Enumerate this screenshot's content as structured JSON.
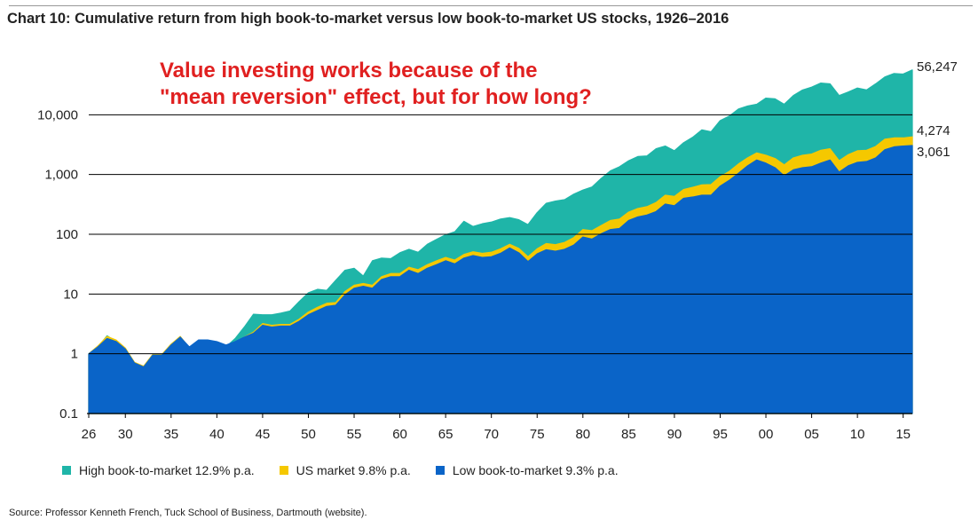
{
  "title": "Chart 10: Cumulative return from high book-to-market versus low book-to-market US stocks, 1926–2016",
  "annotation": [
    "Value investing works because of the",
    "\"mean reversion\" effect, but for how long?"
  ],
  "source": "Source: Professor Kenneth French, Tuck School of Business, Dartmouth (website).",
  "colors": {
    "high": "#1fb5a8",
    "market": "#f5c800",
    "low": "#0a64c8",
    "annotation": "#e02020"
  },
  "chart_data": {
    "type": "area",
    "yscale": "log",
    "ylim": [
      0.1,
      100000
    ],
    "xlim": [
      1926,
      2016
    ],
    "yticks": [
      {
        "value": 0.1,
        "label": "0.1"
      },
      {
        "value": 1,
        "label": "1"
      },
      {
        "value": 10,
        "label": "10"
      },
      {
        "value": 100,
        "label": "100"
      },
      {
        "value": 1000,
        "label": "1,000"
      },
      {
        "value": 10000,
        "label": "10,000"
      }
    ],
    "xticks": [
      {
        "value": 1926,
        "label": "26"
      },
      {
        "value": 1930,
        "label": "30"
      },
      {
        "value": 1935,
        "label": "35"
      },
      {
        "value": 1940,
        "label": "40"
      },
      {
        "value": 1945,
        "label": "45"
      },
      {
        "value": 1950,
        "label": "50"
      },
      {
        "value": 1955,
        "label": "55"
      },
      {
        "value": 1960,
        "label": "60"
      },
      {
        "value": 1965,
        "label": "65"
      },
      {
        "value": 1970,
        "label": "70"
      },
      {
        "value": 1975,
        "label": "75"
      },
      {
        "value": 1980,
        "label": "80"
      },
      {
        "value": 1985,
        "label": "85"
      },
      {
        "value": 1990,
        "label": "90"
      },
      {
        "value": 1995,
        "label": "95"
      },
      {
        "value": 2000,
        "label": "00"
      },
      {
        "value": 2005,
        "label": "05"
      },
      {
        "value": 2010,
        "label": "10"
      },
      {
        "value": 2015,
        "label": "15"
      }
    ],
    "x": [
      1926,
      1927,
      1928,
      1929,
      1930,
      1931,
      1932,
      1933,
      1934,
      1935,
      1936,
      1937,
      1938,
      1939,
      1940,
      1941,
      1942,
      1943,
      1944,
      1945,
      1946,
      1947,
      1948,
      1949,
      1950,
      1951,
      1952,
      1953,
      1954,
      1955,
      1956,
      1957,
      1958,
      1959,
      1960,
      1961,
      1962,
      1963,
      1964,
      1965,
      1966,
      1967,
      1968,
      1969,
      1970,
      1971,
      1972,
      1973,
      1974,
      1975,
      1976,
      1977,
      1978,
      1979,
      1980,
      1981,
      1982,
      1983,
      1984,
      1985,
      1986,
      1987,
      1988,
      1989,
      1990,
      1991,
      1992,
      1993,
      1994,
      1995,
      1996,
      1997,
      1998,
      1999,
      2000,
      2001,
      2002,
      2003,
      2004,
      2005,
      2006,
      2007,
      2008,
      2009,
      2010,
      2011,
      2012,
      2013,
      2014,
      2015,
      2016
    ],
    "series": [
      {
        "name": "High book-to-market",
        "legend_label": "High book-to-market  12.9% p.a.",
        "color": "#1fb5a8",
        "end_label": "56,247",
        "values": [
          1,
          1.3,
          2,
          1.6,
          1.1,
          0.42,
          0.42,
          0.9,
          0.85,
          1.3,
          1.6,
          1.15,
          1.3,
          1.2,
          1.1,
          1.3,
          1.8,
          2.8,
          4.6,
          4.5,
          4.5,
          4.8,
          5.2,
          7.5,
          10.5,
          12,
          11.5,
          17,
          25,
          27,
          20,
          36,
          40,
          39,
          49,
          56,
          50,
          68,
          82,
          98,
          110,
          165,
          135,
          150,
          160,
          180,
          190,
          175,
          145,
          230,
          330,
          360,
          380,
          470,
          550,
          620,
          860,
          1150,
          1350,
          1700,
          2000,
          2050,
          2700,
          3000,
          2500,
          3400,
          4200,
          5600,
          5200,
          8000,
          9500,
          12500,
          14000,
          15000,
          19000,
          18500,
          15000,
          21000,
          26000,
          29000,
          34000,
          33000,
          21000,
          24000,
          28000,
          26000,
          33000,
          43000,
          49000,
          48000,
          56247
        ]
      },
      {
        "name": "US market",
        "legend_label": "US market  9.8% p.a.",
        "color": "#f5c800",
        "end_label": "4,274",
        "values": [
          1,
          1.35,
          1.95,
          1.7,
          1.25,
          0.72,
          0.62,
          0.98,
          0.98,
          1.45,
          1.95,
          1.25,
          1.6,
          1.6,
          1.45,
          1.3,
          1.5,
          1.9,
          2.3,
          3.2,
          3.0,
          3.1,
          3.1,
          3.8,
          5.0,
          6.0,
          7.0,
          7.2,
          11,
          14,
          15,
          14,
          19.5,
          22,
          22,
          28,
          25.5,
          31,
          36,
          41,
          37,
          46,
          51,
          48,
          50,
          57,
          68,
          58,
          42,
          57,
          70,
          67,
          73,
          88,
          120,
          115,
          140,
          170,
          180,
          235,
          270,
          290,
          340,
          450,
          430,
          560,
          610,
          670,
          680,
          920,
          1130,
          1500,
          1900,
          2300,
          2100,
          1850,
          1450,
          1900,
          2100,
          2200,
          2550,
          2700,
          1700,
          2150,
          2500,
          2550,
          2950,
          3900,
          4100,
          4100,
          4274
        ]
      },
      {
        "name": "Low book-to-market",
        "legend_label": "Low book-to-market  9.3% p.a.",
        "color": "#0a64c8",
        "end_label": "3,061",
        "values": [
          1,
          1.3,
          1.8,
          1.6,
          1.2,
          0.7,
          0.6,
          0.95,
          0.95,
          1.4,
          1.9,
          1.3,
          1.7,
          1.7,
          1.6,
          1.4,
          1.6,
          1.9,
          2.2,
          3.0,
          2.8,
          2.9,
          2.9,
          3.5,
          4.5,
          5.3,
          6.2,
          6.5,
          9.7,
          12.5,
          13.5,
          12.5,
          17.5,
          19.5,
          19.5,
          25,
          22,
          27,
          31,
          36,
          32,
          40,
          44,
          41,
          42,
          48,
          59,
          49,
          35,
          47,
          55,
          52,
          56,
          66,
          90,
          83,
          102,
          120,
          125,
          170,
          195,
          210,
          240,
          320,
          300,
          400,
          420,
          450,
          450,
          640,
          800,
          1050,
          1400,
          1750,
          1550,
          1300,
          950,
          1200,
          1300,
          1350,
          1550,
          1750,
          1100,
          1400,
          1600,
          1650,
          1900,
          2600,
          2900,
          3000,
          3061
        ]
      }
    ]
  }
}
